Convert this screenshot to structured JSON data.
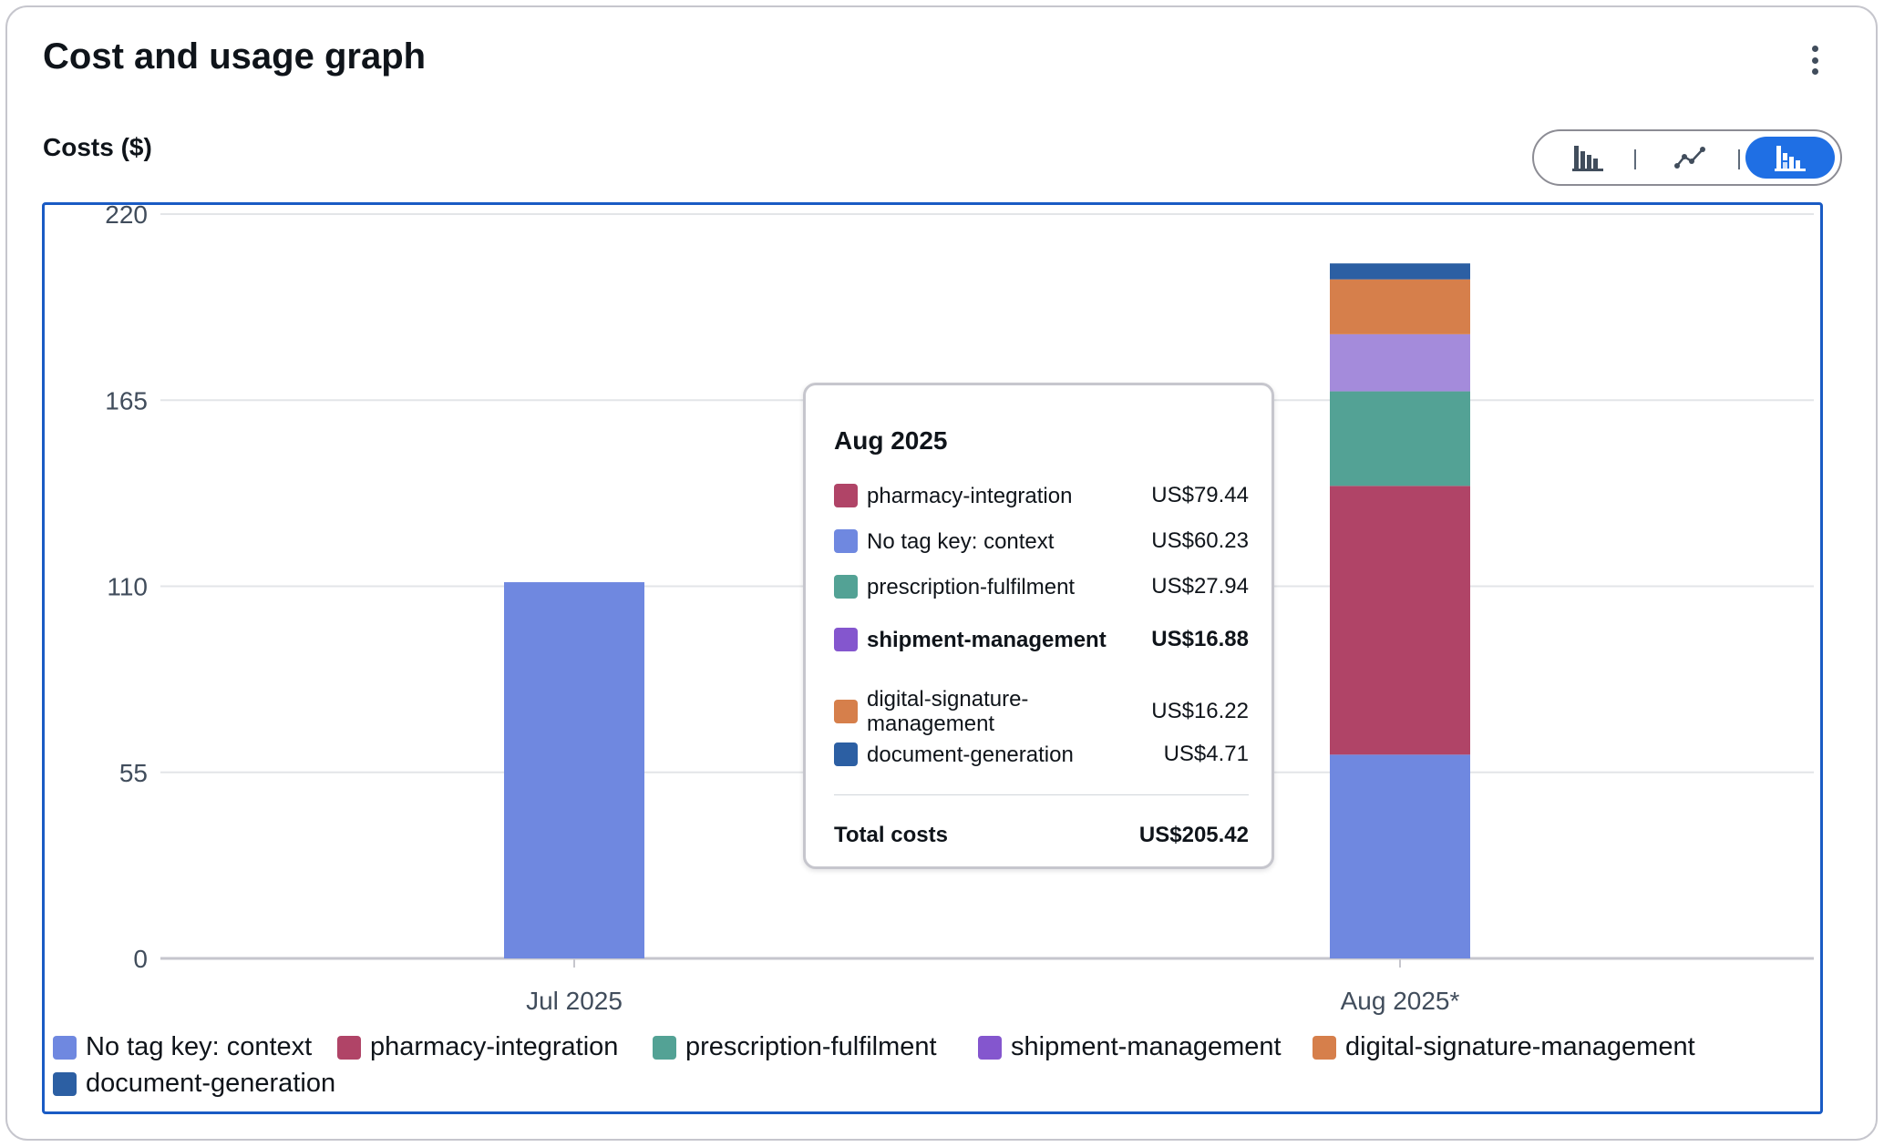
{
  "card": {
    "title": "Cost and usage graph",
    "menu_icon": "kebab-menu-icon"
  },
  "chart_header": {
    "y_axis_title": "Costs ($)",
    "chart_type_toggle": [
      {
        "icon": "bar-chart-icon",
        "selected": false
      },
      {
        "icon": "line-chart-icon",
        "selected": false
      },
      {
        "icon": "stacked-bar-chart-icon",
        "selected": true
      }
    ]
  },
  "chart_data": {
    "type": "bar",
    "stacked": true,
    "ylabel": "Costs ($)",
    "ylim": [
      0,
      220
    ],
    "yticks": [
      "0",
      "55",
      "110",
      "165",
      "220"
    ],
    "categories": [
      "Jul 2025",
      "Aug 2025*"
    ],
    "series": [
      {
        "name": "No tag key: context",
        "color": "#6f88e0",
        "values": [
          111.2,
          60.23
        ]
      },
      {
        "name": "pharmacy-integration",
        "color": "#b04467",
        "values": [
          0,
          79.44
        ]
      },
      {
        "name": "prescription-fulfilment",
        "color": "#53a295",
        "values": [
          0,
          27.94
        ]
      },
      {
        "name": "shipment-management",
        "color": "#a48bdb",
        "legend_color": "#8456ce",
        "values": [
          0,
          16.88
        ]
      },
      {
        "name": "digital-signature-management",
        "color": "#d67f4b",
        "values": [
          0,
          16.22
        ]
      },
      {
        "name": "document-generation",
        "color": "#2c5fa3",
        "values": [
          0,
          4.71
        ]
      }
    ],
    "grid": true,
    "legend_position": "bottom"
  },
  "tooltip": {
    "title": "Aug 2025",
    "rows": [
      {
        "label": "pharmacy-integration",
        "value": "US$79.44",
        "color": "#b04467",
        "bold": false
      },
      {
        "label": "No tag key: context",
        "value": "US$60.23",
        "color": "#6f88e0",
        "bold": false
      },
      {
        "label": "prescription-fulfilment",
        "value": "US$27.94",
        "color": "#53a295",
        "bold": false
      },
      {
        "label": "shipment-management",
        "value": "US$16.88",
        "color": "#8456ce",
        "bold": true
      },
      {
        "label": "digital-signature-management",
        "value": "US$16.22",
        "color": "#d67f4b",
        "bold": false
      },
      {
        "label": "document-generation",
        "value": "US$4.71",
        "color": "#2c5fa3",
        "bold": false
      }
    ],
    "total_label": "Total costs",
    "total_value": "US$205.42"
  }
}
